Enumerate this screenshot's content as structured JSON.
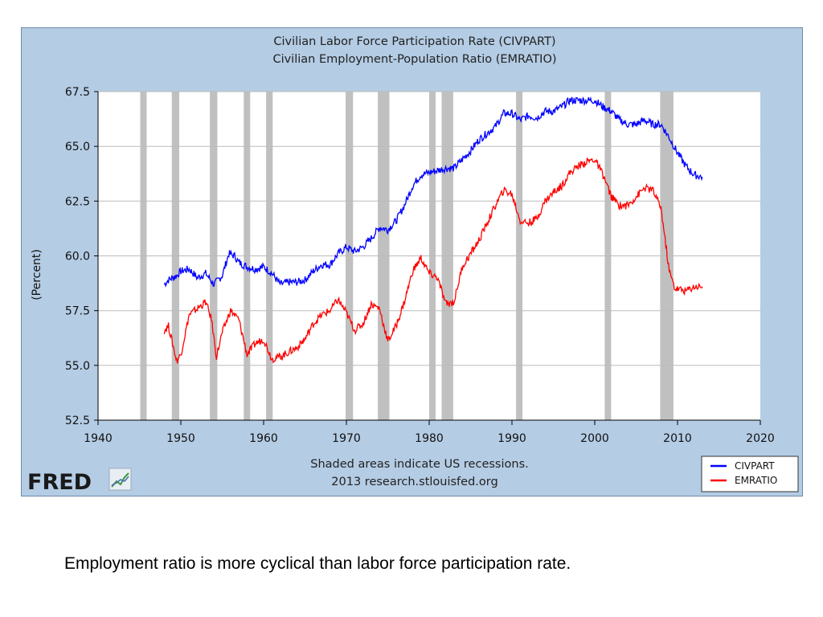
{
  "chart_data": {
    "type": "line",
    "title_lines": [
      "Civilian Labor Force Participation Rate (CIVPART)",
      "Civilian Employment-Population Ratio (EMRATIO)"
    ],
    "ylabel": "(Percent)",
    "xlim": [
      1940,
      2020
    ],
    "ylim": [
      52.5,
      67.5
    ],
    "x_ticks": [
      1940,
      1950,
      1960,
      1970,
      1980,
      1990,
      2000,
      2010,
      2020
    ],
    "y_ticks": [
      "67.5",
      "65.0",
      "62.5",
      "60.0",
      "57.5",
      "55.0",
      "52.5"
    ],
    "grid": "horizontal",
    "legend_position": "bottom-right",
    "recessions": [
      [
        1945.1,
        1945.8
      ],
      [
        1948.9,
        1949.8
      ],
      [
        1953.5,
        1954.4
      ],
      [
        1957.6,
        1958.3
      ],
      [
        1960.3,
        1961.1
      ],
      [
        1969.9,
        1970.8
      ],
      [
        1973.8,
        1975.2
      ],
      [
        1980.0,
        1980.5
      ],
      [
        1981.5,
        1982.9
      ],
      [
        1990.5,
        1991.2
      ],
      [
        2001.2,
        2001.9
      ],
      [
        2007.9,
        2009.5
      ]
    ],
    "series": [
      {
        "name": "CIVPART",
        "color": "#0000ff",
        "x": [
          1948.0,
          1948.5,
          1949.0,
          1949.5,
          1950.0,
          1951.0,
          1952.0,
          1953.0,
          1954.0,
          1955.0,
          1955.8,
          1956.5,
          1957.0,
          1958.0,
          1959.0,
          1960.0,
          1961.0,
          1962.0,
          1963.0,
          1964.0,
          1965.0,
          1966.0,
          1967.0,
          1968.0,
          1969.0,
          1970.0,
          1971.0,
          1972.0,
          1973.0,
          1974.0,
          1975.0,
          1976.0,
          1977.0,
          1978.0,
          1979.0,
          1980.0,
          1981.0,
          1982.0,
          1983.0,
          1984.0,
          1985.0,
          1986.0,
          1987.0,
          1988.0,
          1989.0,
          1990.0,
          1991.0,
          1992.0,
          1993.0,
          1994.0,
          1995.0,
          1996.0,
          1997.0,
          1998.0,
          1999.0,
          2000.0,
          2001.0,
          2002.0,
          2003.0,
          2004.0,
          2005.0,
          2006.0,
          2007.0,
          2008.0,
          2009.0,
          2010.0,
          2011.0,
          2012.0,
          2013.0
        ],
        "y": [
          58.7,
          58.9,
          59.0,
          59.1,
          59.3,
          59.4,
          59.0,
          59.2,
          58.7,
          59.1,
          60.1,
          60.0,
          59.7,
          59.5,
          59.4,
          59.5,
          59.2,
          58.7,
          58.8,
          58.8,
          58.9,
          59.3,
          59.6,
          59.6,
          60.1,
          60.4,
          60.2,
          60.4,
          60.8,
          61.3,
          61.2,
          61.6,
          62.3,
          63.2,
          63.7,
          63.8,
          63.9,
          64.0,
          64.0,
          64.4,
          64.8,
          65.3,
          65.6,
          65.9,
          66.5,
          66.5,
          66.2,
          66.4,
          66.3,
          66.6,
          66.6,
          66.8,
          67.1,
          67.1,
          67.1,
          67.1,
          66.8,
          66.6,
          66.2,
          66.0,
          66.0,
          66.2,
          66.0,
          66.0,
          65.4,
          64.7,
          64.1,
          63.7,
          63.6
        ]
      },
      {
        "name": "EMRATIO",
        "color": "#ff0000",
        "x": [
          1948.0,
          1948.5,
          1949.0,
          1949.5,
          1950.0,
          1951.0,
          1952.0,
          1953.0,
          1953.7,
          1954.3,
          1955.0,
          1956.0,
          1957.0,
          1958.0,
          1959.0,
          1960.0,
          1961.0,
          1962.0,
          1963.0,
          1964.0,
          1965.0,
          1966.0,
          1967.0,
          1968.0,
          1969.0,
          1970.0,
          1971.0,
          1972.0,
          1973.0,
          1974.0,
          1975.0,
          1976.0,
          1977.0,
          1978.0,
          1979.0,
          1980.0,
          1981.0,
          1982.0,
          1983.0,
          1984.0,
          1985.0,
          1986.0,
          1987.0,
          1988.0,
          1989.0,
          1990.0,
          1991.0,
          1992.0,
          1993.0,
          1994.0,
          1995.0,
          1996.0,
          1997.0,
          1998.0,
          1999.0,
          2000.0,
          2001.0,
          2002.0,
          2003.0,
          2004.0,
          2005.0,
          2006.0,
          2007.0,
          2008.0,
          2009.0,
          2009.7,
          2010.0,
          2011.0,
          2012.0,
          2013.0
        ],
        "y": [
          56.6,
          56.8,
          56.0,
          55.2,
          55.5,
          57.3,
          57.6,
          57.9,
          57.1,
          55.4,
          56.5,
          57.5,
          57.1,
          55.5,
          56.0,
          56.2,
          55.3,
          55.4,
          55.6,
          55.8,
          56.2,
          56.9,
          57.3,
          57.5,
          58.0,
          57.4,
          56.6,
          56.9,
          57.8,
          57.6,
          56.1,
          56.8,
          57.9,
          59.3,
          59.9,
          59.2,
          59.0,
          57.8,
          57.9,
          59.5,
          60.1,
          60.7,
          61.5,
          62.3,
          63.0,
          62.8,
          61.6,
          61.5,
          61.7,
          62.5,
          62.9,
          63.2,
          63.8,
          64.1,
          64.3,
          64.4,
          63.7,
          62.7,
          62.3,
          62.3,
          62.7,
          63.1,
          63.0,
          62.2,
          59.3,
          58.5,
          58.5,
          58.4,
          58.6,
          58.6
        ]
      }
    ],
    "footer_note_lines": [
      "Shaded areas indicate US recessions.",
      "2013 research.stlouisfed.org"
    ],
    "logo_text": "FRED"
  },
  "caption": "Employment ratio is more cyclical than labor force participation rate."
}
